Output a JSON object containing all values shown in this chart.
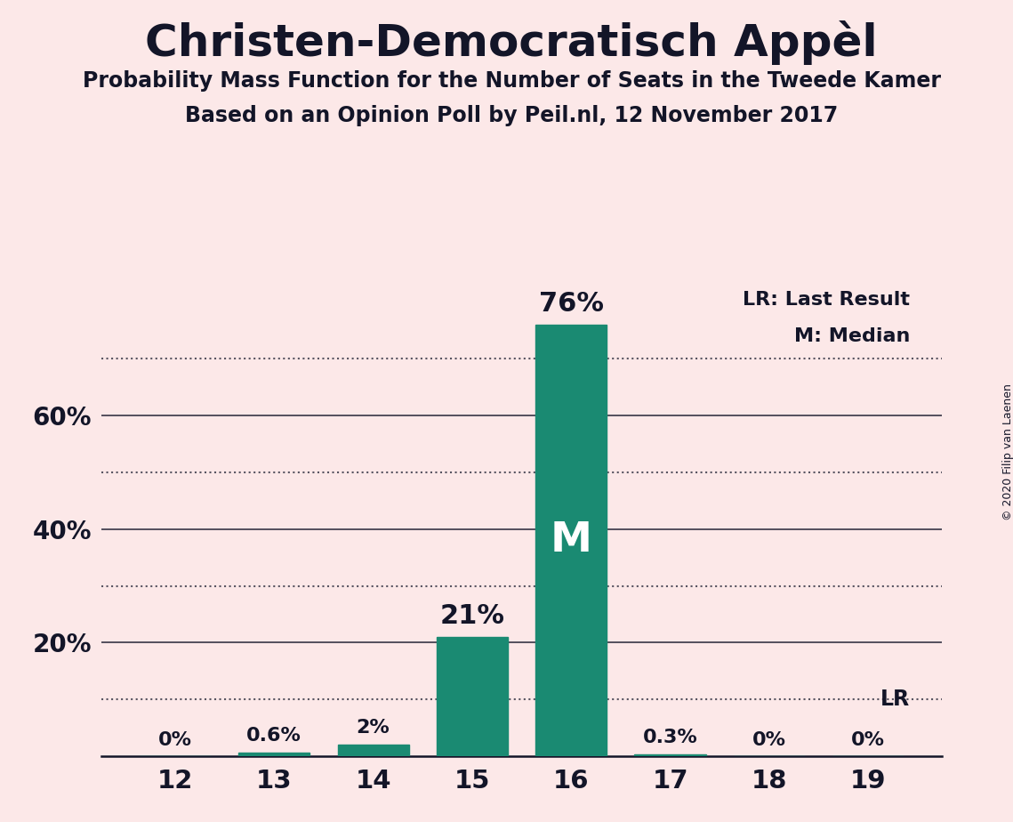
{
  "title": "Christen-Democratisch Appèl",
  "subtitle1": "Probability Mass Function for the Number of Seats in the Tweede Kamer",
  "subtitle2": "Based on an Opinion Poll by Peil.nl, 12 November 2017",
  "copyright": "© 2020 Filip van Laenen",
  "categories": [
    12,
    13,
    14,
    15,
    16,
    17,
    18,
    19
  ],
  "values": [
    0.0,
    0.6,
    2.0,
    21.0,
    76.0,
    0.3,
    0.0,
    0.0
  ],
  "bar_labels": [
    "0%",
    "0.6%",
    "2%",
    "21%",
    "76%",
    "0.3%",
    "0%",
    "0%"
  ],
  "bar_color": "#1a8a72",
  "background_color": "#fce8e8",
  "text_color": "#131528",
  "median_bar_index": 4,
  "median_label": "M",
  "lr_value": 10.0,
  "lr_label": "LR",
  "legend_text1": "LR: Last Result",
  "legend_text2": "M: Median",
  "ylim": [
    0,
    84
  ],
  "solid_gridlines": [
    20,
    40,
    60
  ],
  "dotted_gridlines": [
    10,
    30,
    50,
    70
  ],
  "lr_dotted_gridlines": [
    10
  ],
  "ytick_positions": [
    20,
    40,
    60
  ],
  "ytick_labels": [
    "20%",
    "40%",
    "60%"
  ]
}
